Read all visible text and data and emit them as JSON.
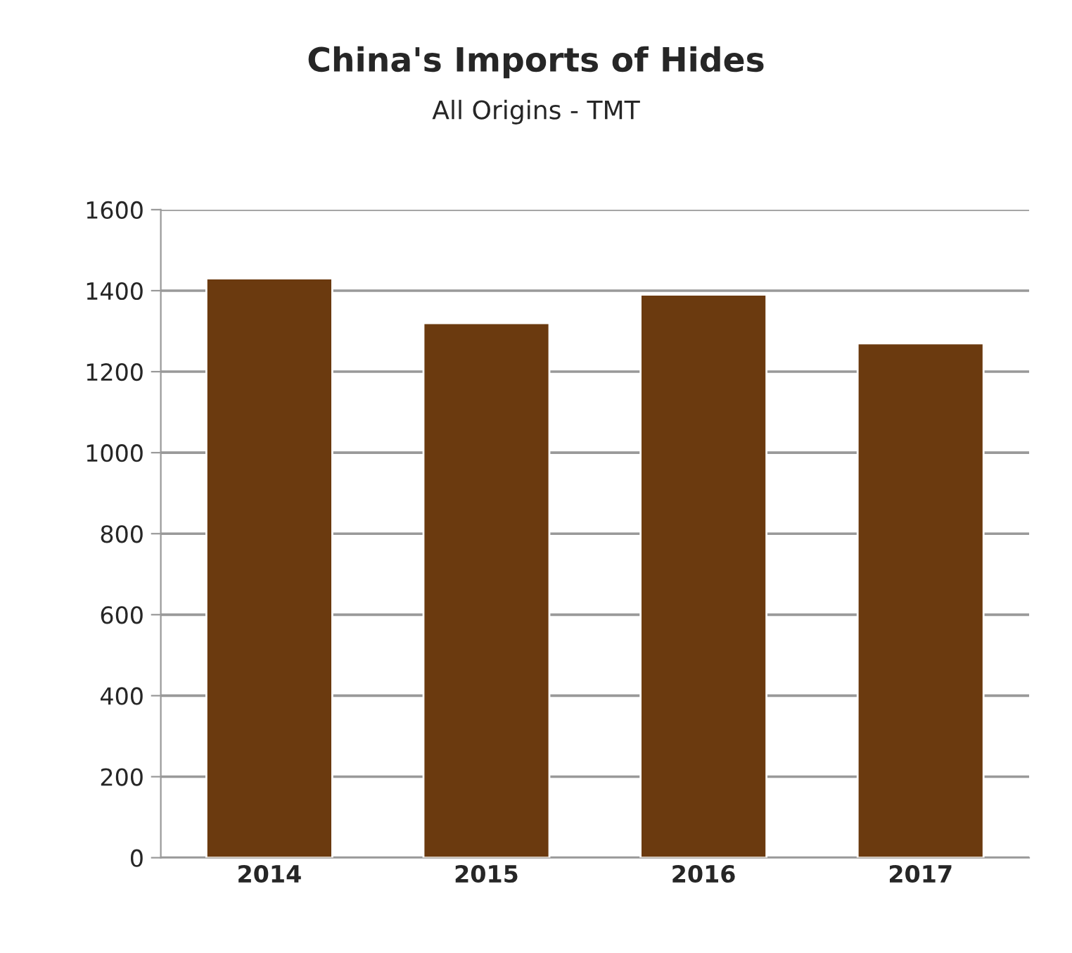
{
  "chart_data": {
    "type": "bar",
    "title": "China's Imports of Hides",
    "subtitle": "All Origins - TMT",
    "categories": [
      "2014",
      "2015",
      "2016",
      "2017"
    ],
    "values": [
      1430,
      1320,
      1390,
      1270
    ],
    "color": "#6b3a0f",
    "ylim": [
      0,
      1600
    ],
    "yticks": [
      0,
      200,
      400,
      600,
      800,
      1000,
      1200,
      1400,
      1600
    ],
    "grid": "y"
  }
}
